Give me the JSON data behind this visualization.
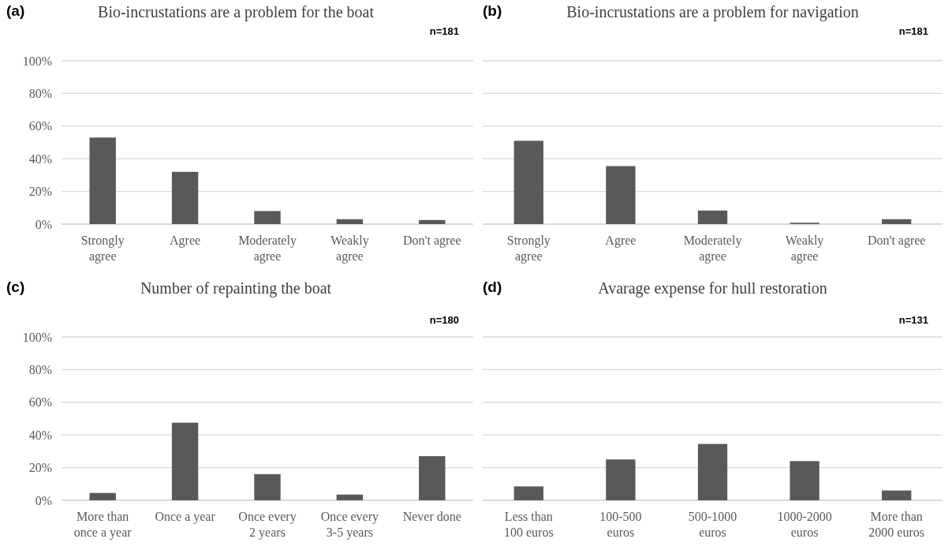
{
  "chart_data": [
    {
      "type": "bar",
      "title": "Bio-incrustations are a problem for the boat",
      "annotations": [
        "(a)",
        "n=181"
      ],
      "categories": [
        "Strongly agree",
        "Agree",
        "Moderately agree",
        "Weakly agree",
        "Don't agree"
      ],
      "values": [
        53,
        32,
        8,
        3,
        2.5
      ],
      "color": "#595959",
      "ylim": [
        0,
        100
      ],
      "yticks": [
        {
          "value": 0,
          "label": "0%"
        },
        {
          "value": 20,
          "label": "20%"
        },
        {
          "value": 40,
          "label": "40%"
        },
        {
          "value": 60,
          "label": "60%"
        },
        {
          "value": 80,
          "label": "80%"
        },
        {
          "value": 100,
          "label": "100%"
        }
      ],
      "grid": "y"
    },
    {
      "type": "bar",
      "title": "Bio-incrustations are a problem for navigation",
      "annotations": [
        "(b)",
        "n=181"
      ],
      "categories": [
        "Strongly agree",
        "Agree",
        "Moderately agree",
        "Weakly agree",
        "Don't agree"
      ],
      "values": [
        51,
        35.5,
        8.3,
        0.8,
        3
      ],
      "color": "#595959",
      "ylim": [
        0,
        100
      ],
      "yticks": [
        0,
        20,
        40,
        60,
        80,
        100
      ],
      "grid": "y",
      "tick_labels": "x"
    },
    {
      "type": "bar",
      "title": "Number of repainting the boat",
      "annotations": [
        "(c)",
        "n=180"
      ],
      "categories": [
        "More than once a year",
        "Once a year",
        "Once every 2 years",
        "Once every 3-5 years",
        "Never done"
      ],
      "values": [
        4.5,
        47.5,
        16,
        3.5,
        27
      ],
      "color": "#595959",
      "ylim": [
        0,
        100
      ],
      "yticks": [
        {
          "value": 0,
          "label": "0%"
        },
        {
          "value": 20,
          "label": "20%"
        },
        {
          "value": 40,
          "label": "40%"
        },
        {
          "value": 60,
          "label": "60%"
        },
        {
          "value": 80,
          "label": "80%"
        },
        {
          "value": 100,
          "label": "100%"
        }
      ],
      "grid": "y"
    },
    {
      "type": "bar",
      "title": "Avarage expense for hull restoration",
      "annotations": [
        "(d)",
        "n=131"
      ],
      "categories": [
        "Less than 100 euros",
        "100-500 euros",
        "500-1000 euros",
        "1000-2000 euros",
        "More than 2000 euros"
      ],
      "values": [
        8.5,
        25,
        34.5,
        24,
        6
      ],
      "color": "#595959",
      "ylim": [
        0,
        100
      ],
      "yticks": [
        0,
        20,
        40,
        60,
        80,
        100
      ],
      "grid": "y",
      "tick_labels": "x"
    }
  ]
}
